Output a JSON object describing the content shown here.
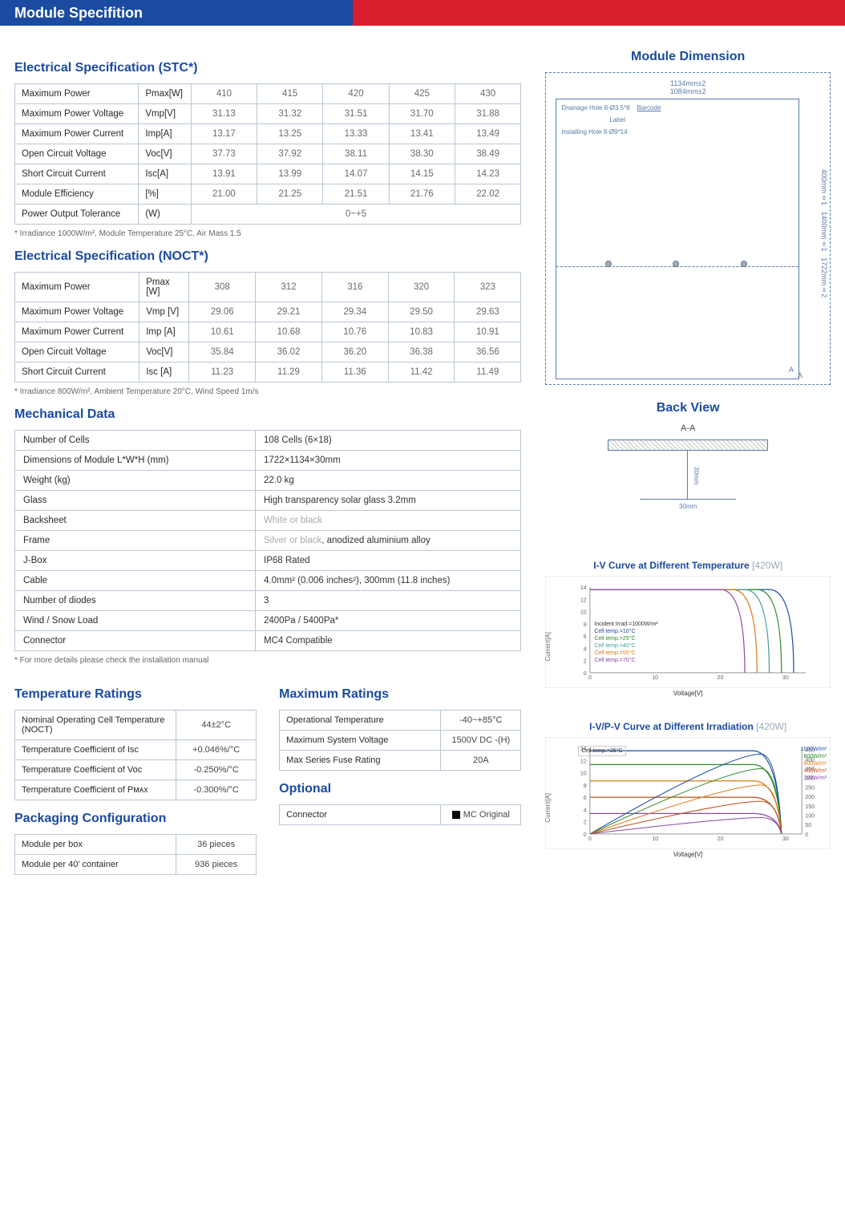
{
  "banner_title": "Module Specifition",
  "stc": {
    "title": "Electrical Specification (STC*)",
    "footnote": "* Irradiance 1000W/m², Module Temperature 25°C, Air Mass 1.5",
    "rows": [
      {
        "label": "Maximum Power",
        "unit": "Pmax[W]",
        "v": [
          "410",
          "415",
          "420",
          "425",
          "430"
        ]
      },
      {
        "label": "Maximum Power Voltage",
        "unit": "Vmp[V]",
        "v": [
          "31.13",
          "31.32",
          "31.51",
          "31.70",
          "31.88"
        ]
      },
      {
        "label": "Maximum Power Current",
        "unit": "Imp[A]",
        "v": [
          "13.17",
          "13.25",
          "13.33",
          "13.41",
          "13.49"
        ]
      },
      {
        "label": "Open Circuit Voltage",
        "unit": "Voc[V]",
        "v": [
          "37.73",
          "37.92",
          "38.11",
          "38.30",
          "38.49"
        ]
      },
      {
        "label": "Short Circuit Current",
        "unit": "Isc[A]",
        "v": [
          "13.91",
          "13.99",
          "14.07",
          "14.15",
          "14.23"
        ]
      },
      {
        "label": "Module Efficiency",
        "unit": "[%]",
        "v": [
          "21.00",
          "21.25",
          "21.51",
          "21.76",
          "22.02"
        ]
      }
    ],
    "tolerance": {
      "label": "Power Output Tolerance",
      "unit": "(W)",
      "value": "0~+5"
    }
  },
  "noct": {
    "title": "Electrical Specification (NOCT*)",
    "footnote": "* Irradiance 800W/m², Ambient Temperature 20°C, Wind Speed 1m/s",
    "rows": [
      {
        "label": "Maximum Power",
        "unit": "Pmax [W]",
        "v": [
          "308",
          "312",
          "316",
          "320",
          "323"
        ]
      },
      {
        "label": "Maximum Power Voltage",
        "unit": "Vmp [V]",
        "v": [
          "29.06",
          "29.21",
          "29.34",
          "29.50",
          "29.63"
        ]
      },
      {
        "label": "Maximum Power Current",
        "unit": "Imp [A]",
        "v": [
          "10.61",
          "10.68",
          "10.76",
          "10.83",
          "10.91"
        ]
      },
      {
        "label": "Open Circuit Voltage",
        "unit": "Voc[V]",
        "v": [
          "35.84",
          "36.02",
          "36.20",
          "36.38",
          "36.56"
        ]
      },
      {
        "label": "Short Circuit Current",
        "unit": "Isc [A]",
        "v": [
          "11.23",
          "11.29",
          "11.36",
          "11.42",
          "11.49"
        ]
      }
    ]
  },
  "mech": {
    "title": "Mechanical Data",
    "footnote": "* For more details please check the installation manual",
    "rows": [
      {
        "k": "Number of Cells",
        "v": "108 Cells (6×18)"
      },
      {
        "k": "Dimensions of Module L*W*H (mm)",
        "v": "1722×1134×30mm"
      },
      {
        "k": "Weight (kg)",
        "v": "22.0 kg"
      },
      {
        "k": "Glass",
        "v": "High transparency solar glass 3.2mm"
      },
      {
        "k": "Backsheet",
        "v_faded": "White or black",
        "v_rest": ""
      },
      {
        "k": "Frame",
        "v_faded": "Silver or black",
        "v_rest": ", anodized aluminium alloy"
      },
      {
        "k": "J-Box",
        "v": "IP68 Rated"
      },
      {
        "k": "Cable",
        "v": "4.0mm² (0.006 inches²), 300mm (11.8 inches)"
      },
      {
        "k": "Number of diodes",
        "v": "3"
      },
      {
        "k": "Wind / Snow Load",
        "v": "2400Pa / 5400Pa*"
      },
      {
        "k": "Connector",
        "v": "MC4 Compatible"
      }
    ]
  },
  "temp": {
    "title": "Temperature Ratings",
    "rows": [
      {
        "k": "Nominal Operating Cell Temperature (NOCT)",
        "v": "44±2°C"
      },
      {
        "k": "Temperature Coefficient of Isc",
        "v": "+0.046%/°C"
      },
      {
        "k": "Temperature Coefficient of Voc",
        "v": "-0.250%/°C"
      },
      {
        "k": "Temperature Coefficient of Pᴍᴀx",
        "v": "-0.300%/°C"
      }
    ]
  },
  "max": {
    "title": "Maximum Ratings",
    "rows": [
      {
        "k": "Operational Temperature",
        "v": "-40~+85°C"
      },
      {
        "k": "Maximum System Voltage",
        "v": "1500V DC -(H)"
      },
      {
        "k": "Max Series Fuse Rating",
        "v": "20A"
      }
    ]
  },
  "pack": {
    "title": "Packaging Configuration",
    "rows": [
      {
        "k": "Module per box",
        "v": "36 pieces"
      },
      {
        "k": "Module per 40' container",
        "v": "936 pieces"
      }
    ]
  },
  "opt": {
    "title": "Optional",
    "rows": [
      {
        "k": "Connector",
        "v": "MC Original"
      }
    ]
  },
  "dim": {
    "title": "Module Dimension",
    "top1": "1134mm±2",
    "top2": "1084mm±2",
    "drainage": "Drainage Hole 8-Ø3.5*8",
    "barcode": "Barcode",
    "label": "Label",
    "install": "Installing Hole 8-Ø9*14",
    "side1": "400mm±1",
    "side2": "1400mm±1",
    "side3": "1722mm±2",
    "a": "A"
  },
  "back": {
    "title": "Back View",
    "section": "A-A",
    "h": "30mm",
    "w": "30mm"
  },
  "chart1": {
    "title": "I-V Curve at Different Temperature",
    "wattage": "[420W]",
    "ylabel": "Current[A]",
    "xlabel": "Voltage[V]",
    "yticks": [
      "0",
      "2",
      "4",
      "6",
      "8",
      "10",
      "12",
      "14"
    ],
    "xticks": [
      "0",
      "10",
      "20",
      "30"
    ],
    "legend_title": "Incident Irrad.=1000W/m²",
    "legend": [
      {
        "label": "Cell temp.=10°C",
        "color": "#1a4ba0"
      },
      {
        "label": "Cell temp.=25°C",
        "color": "#2e8b2e"
      },
      {
        "label": "Cell temp.=40°C",
        "color": "#4a9a9a"
      },
      {
        "label": "Cell temp.=55°C",
        "color": "#d97a1a"
      },
      {
        "label": "Cell temp.=70°C",
        "color": "#8a4aa0"
      }
    ],
    "curves_color": [
      "#1a4ba0",
      "#2e8b2e",
      "#4a9a9a",
      "#d97a1a",
      "#8a4aa0"
    ]
  },
  "chart2": {
    "title": "I-V/P-V Curve at Different Irradiation",
    "wattage": "[420W]",
    "ylabel": "Current[A]",
    "xlabel": "Voltage[V]",
    "yticks": [
      "0",
      "2",
      "4",
      "6",
      "8",
      "10",
      "12",
      "14"
    ],
    "xticks": [
      "0",
      "10",
      "20",
      "30"
    ],
    "legend_cell": "Cell temp.=25°C",
    "legend": [
      {
        "label": "1000W/m²",
        "color": "#1a4ba0"
      },
      {
        "label": "800W/m²",
        "color": "#2e8b2e"
      },
      {
        "label": "600W/m²",
        "color": "#d97a1a"
      },
      {
        "label": "400W/m²",
        "color": "#b8501a"
      },
      {
        "label": "200W/m²",
        "color": "#8a4aa0"
      }
    ],
    "right_yticks": [
      "0",
      "50",
      "100",
      "150",
      "200",
      "250",
      "300",
      "350",
      "400",
      "450"
    ]
  }
}
